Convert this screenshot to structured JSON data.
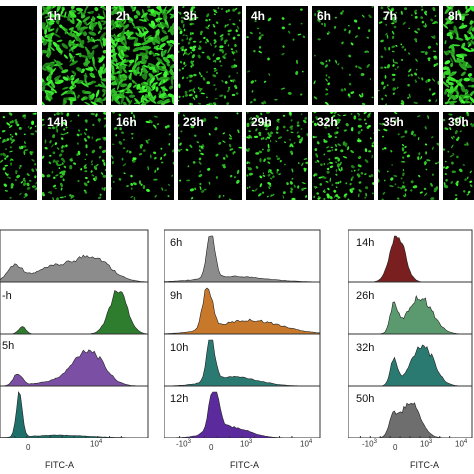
{
  "microscopy": {
    "row1": [
      "",
      "1h",
      "2h",
      "3h",
      "4h",
      "6h",
      "7h",
      "8h"
    ],
    "row2": [
      "",
      "14h",
      "16h",
      "23h",
      "29h",
      "32h",
      "35h",
      "39h"
    ],
    "row1_brightness": [
      0.0,
      0.75,
      1.0,
      0.55,
      0.12,
      0.18,
      0.35,
      0.7
    ],
    "row2_brightness": [
      0.5,
      0.45,
      0.25,
      0.22,
      0.45,
      0.55,
      0.25,
      0.35
    ]
  },
  "flow": {
    "axis_title": "FITC-A",
    "left": {
      "labels": [
        "",
        "-h",
        "5h",
        ""
      ],
      "colors": [
        "#8c8c8c",
        "#2e7d2e",
        "#7b4fa3",
        "#1f6f6b"
      ]
    },
    "middle": {
      "labels": [
        "6h",
        "9h",
        "10h",
        "12h"
      ],
      "colors": [
        "#8c8c8c",
        "#c8782a",
        "#2a7a72",
        "#5b2b9e"
      ],
      "ticks": [
        "-10",
        "0",
        "10",
        "10"
      ],
      "tick_exp": [
        "3",
        "",
        "3",
        "4"
      ]
    },
    "right": {
      "labels": [
        "14h",
        "26h",
        "32h",
        "50h"
      ],
      "colors": [
        "#7a1f1f",
        "#5a9a6e",
        "#2a7a72",
        "#6e6e6e"
      ],
      "ticks": [
        "-10",
        "0",
        "10",
        "10"
      ],
      "tick_exp": [
        "3",
        "",
        "3",
        "4"
      ]
    },
    "left_ticks": [
      "0",
      "10"
    ],
    "left_tick_exp": [
      "",
      "4"
    ]
  }
}
